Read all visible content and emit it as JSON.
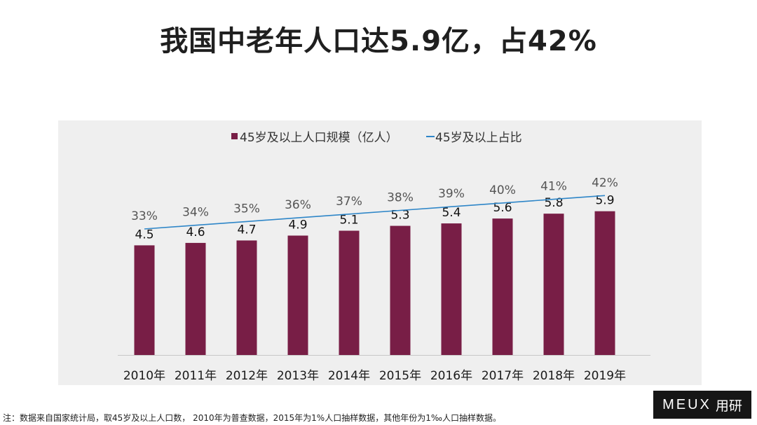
{
  "title": "我国中老年人口达5.9亿，占42%",
  "chart_data": {
    "type": "bar",
    "categories": [
      "2010年",
      "2011年",
      "2012年",
      "2013年",
      "2014年",
      "2015年",
      "2016年",
      "2017年",
      "2018年",
      "2019年"
    ],
    "series": [
      {
        "name": "45岁及以上人口规模（亿人）",
        "type": "bar",
        "values": [
          4.5,
          4.6,
          4.7,
          4.9,
          5.1,
          5.3,
          5.4,
          5.6,
          5.8,
          5.9
        ],
        "labels": [
          "4.5",
          "4.6",
          "4.7",
          "4.9",
          "5.1",
          "5.3",
          "5.4",
          "5.6",
          "5.8",
          "5.9"
        ],
        "color": "#781e46"
      },
      {
        "name": "45岁及以上占比",
        "type": "line",
        "values": [
          33,
          34,
          35,
          36,
          37,
          38,
          39,
          40,
          41,
          42
        ],
        "labels": [
          "33%",
          "34%",
          "35%",
          "36%",
          "37%",
          "38%",
          "39%",
          "40%",
          "41%",
          "42%"
        ],
        "color": "#2e86c8"
      }
    ],
    "legend_position": "top-center",
    "grid": false
  },
  "note": "注：数据来自国家统计局，取45岁及以上人口数， 2010年为普查数据，2015年为1%人口抽样数据，其他年份为1‰人口抽样数据。",
  "logo": {
    "latin": "MEUX",
    "chinese": "用研"
  },
  "colors": {
    "bar": "#781e46",
    "line": "#2e86c8",
    "panel": "#efefef"
  }
}
